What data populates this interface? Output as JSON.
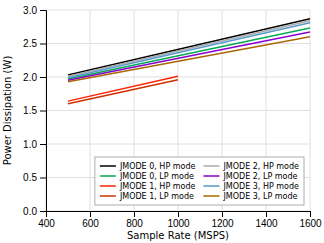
{
  "chart_data": {
    "type": "line",
    "xlabel": "Sample Rate (MSPS)",
    "ylabel": "Power Dissipation (W)",
    "xlim": [
      400,
      1600
    ],
    "ylim": [
      0,
      3
    ],
    "xticks": [
      400,
      600,
      800,
      1000,
      1200,
      1400,
      1600
    ],
    "yticks": [
      {
        "value": 0,
        "label": "0.0"
      },
      {
        "value": 0.5,
        "label": "0.5"
      },
      {
        "value": 1,
        "label": "1.0"
      },
      {
        "value": 1.5,
        "label": "1.5"
      },
      {
        "value": 2,
        "label": "2.0"
      },
      {
        "value": 2.5,
        "label": "2.5"
      },
      {
        "value": 3,
        "label": "3.0"
      }
    ],
    "grid": true,
    "legend": "lower right",
    "series": [
      {
        "name": "JMODE 0, HP mode",
        "color": "#000000",
        "x": [
          500,
          1600
        ],
        "values": [
          2.03,
          2.87
        ]
      },
      {
        "name": "JMODE 0, LP mode",
        "color": "#00aa55",
        "x": [
          500,
          1600
        ],
        "values": [
          1.97,
          2.73
        ]
      },
      {
        "name": "JMODE 1, HP mode",
        "color": "#ff2200",
        "x": [
          500,
          1000
        ],
        "values": [
          1.64,
          2.01
        ]
      },
      {
        "name": "JMODE 1, LP mode",
        "color": "#cc3300",
        "x": [
          500,
          1000
        ],
        "values": [
          1.6,
          1.96
        ]
      },
      {
        "name": "JMODE 2, HP mode",
        "color": "#aaaaaa",
        "x": [
          500,
          1600
        ],
        "values": [
          2.01,
          2.84
        ]
      },
      {
        "name": "JMODE 2, LP mode",
        "color": "#8800cc",
        "x": [
          500,
          1600
        ],
        "values": [
          1.95,
          2.67
        ]
      },
      {
        "name": "JMODE 3, HP mode",
        "color": "#5599cc",
        "x": [
          500,
          1600
        ],
        "values": [
          1.99,
          2.81
        ]
      },
      {
        "name": "JMODE 3, LP mode",
        "color": "#aa6600",
        "x": [
          500,
          1600
        ],
        "values": [
          1.93,
          2.6
        ]
      }
    ]
  }
}
